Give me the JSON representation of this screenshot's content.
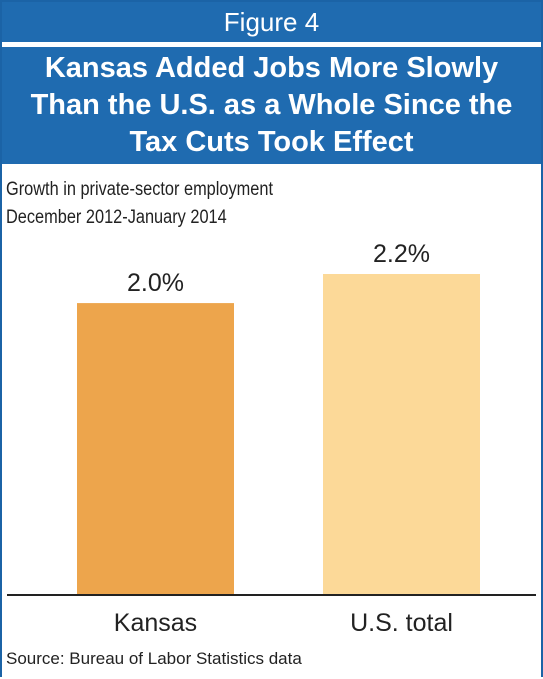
{
  "figure_label": "Figure 4",
  "title": "Kansas Added Jobs More Slowly Than the U.S. as a Whole Since the Tax Cuts Took Effect",
  "subtitle_lines": [
    "Growth in private-sector employment",
    "December 2012-January 2014"
  ],
  "source": "Source: Bureau of Labor Statistics data",
  "colors": {
    "header_bg": "#1f6bb0",
    "header_text": "#ffffff",
    "frame": "#1b63a6",
    "kansas_bar": "#eda54c",
    "us_bar": "#fcd998",
    "baseline": "#222222"
  },
  "chart_data": {
    "type": "bar",
    "categories": [
      "Kansas",
      "U.S. total"
    ],
    "values": [
      2.0,
      2.2
    ],
    "value_labels": [
      "2.0%",
      "2.2%"
    ],
    "bar_colors": [
      "#eda54c",
      "#fcd998"
    ],
    "ylim": [
      0,
      2.2
    ],
    "grid": false,
    "legend": "none"
  }
}
